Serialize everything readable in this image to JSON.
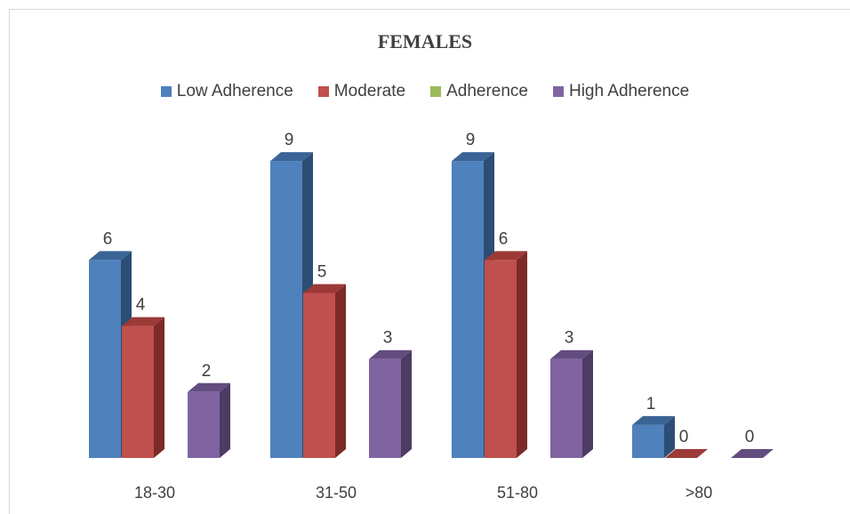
{
  "chart_data": {
    "type": "bar",
    "title": "FEMALES",
    "categories": [
      "18-30",
      "31-50",
      "51-80",
      ">80"
    ],
    "series": [
      {
        "name": "Low Adherence",
        "values": [
          6,
          9,
          9,
          1
        ],
        "color": "#4f81bd",
        "side": "#2c4d75",
        "top": "#3b6496"
      },
      {
        "name": "Moderate",
        "values": [
          4,
          5,
          6,
          0
        ],
        "color": "#c0504d",
        "side": "#7d2a28",
        "top": "#9b3a37"
      },
      {
        "name": "Adherence",
        "values": [
          null,
          null,
          null,
          null
        ],
        "color": "#9bbb59",
        "side": "#5f7530",
        "top": "#7a9440"
      },
      {
        "name": "High Adherence",
        "values": [
          2,
          3,
          3,
          0
        ],
        "color": "#8064a2",
        "side": "#4d3b63",
        "top": "#634c80"
      }
    ],
    "legend": "top",
    "grid": false,
    "ylim": [
      0,
      9
    ]
  }
}
